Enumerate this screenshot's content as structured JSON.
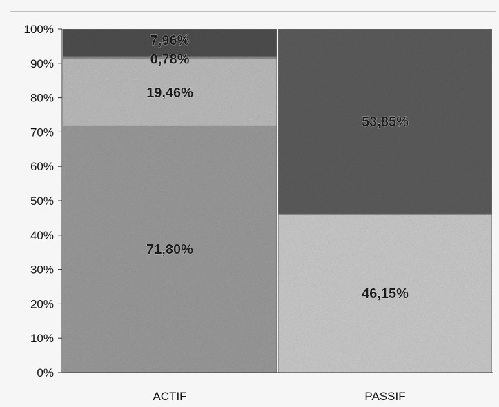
{
  "chart_data": {
    "type": "bar",
    "stacked": true,
    "percent": true,
    "categories": [
      "ACTIF",
      "PASSIF"
    ],
    "ylim": [
      0,
      100
    ],
    "yticks": [
      "0%",
      "10%",
      "20%",
      "30%",
      "40%",
      "50%",
      "60%",
      "70%",
      "80%",
      "90%",
      "100%"
    ],
    "title": "",
    "xlabel": "",
    "ylabel": "",
    "legend": false,
    "grid": false,
    "stacks": [
      {
        "category": "ACTIF",
        "segments": [
          {
            "value": 71.8,
            "label": "71,80%",
            "color": "#9a9a9a"
          },
          {
            "value": 19.46,
            "label": "19,46%",
            "color": "#bcbcbc"
          },
          {
            "value": 0.78,
            "label": "0,78%",
            "color": "#8a8a8a"
          },
          {
            "value": 7.96,
            "label": "7,96%",
            "color": "#4e4e4e"
          }
        ]
      },
      {
        "category": "PASSIF",
        "segments": [
          {
            "value": 46.15,
            "label": "46,15%",
            "color": "#cacaca"
          },
          {
            "value": 53.85,
            "label": "53,85%",
            "color": "#5c5c5c"
          }
        ]
      }
    ]
  }
}
